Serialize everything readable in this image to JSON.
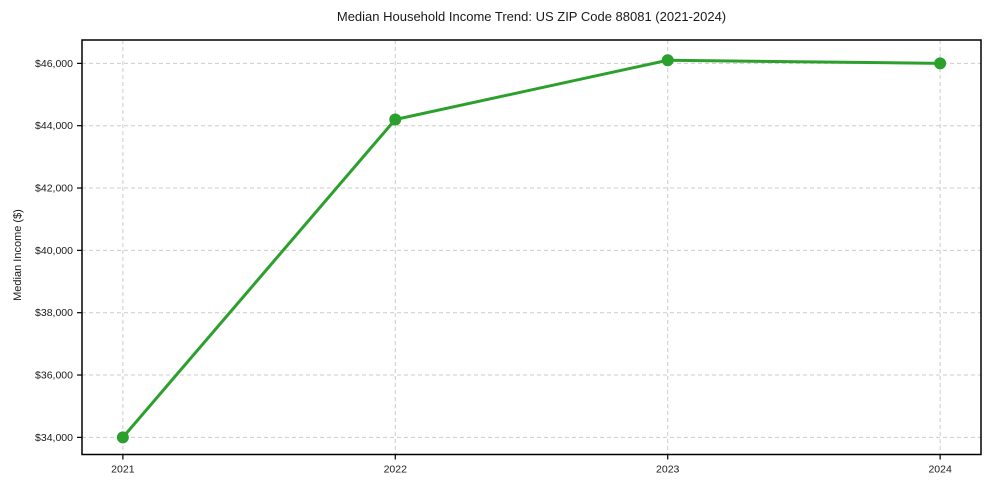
{
  "chart_data": {
    "type": "line",
    "title": "Median Household Income Trend: US ZIP Code 88081 (2021-2024)",
    "xlabel": "",
    "ylabel": "Median Income ($)",
    "x": [
      2021,
      2022,
      2023,
      2024
    ],
    "xtick_labels": [
      "2021",
      "2022",
      "2023",
      "2024"
    ],
    "series": [
      {
        "name": "Median Household Income",
        "values": [
          34000,
          44200,
          46100,
          46000
        ]
      }
    ],
    "yticks": [
      34000,
      36000,
      38000,
      40000,
      42000,
      44000,
      46000
    ],
    "ytick_labels": [
      "$34,000",
      "$36,000",
      "$38,000",
      "$40,000",
      "$42,000",
      "$44,000",
      "$46,000"
    ],
    "xlim": [
      2020.85,
      2024.15
    ],
    "ylim": [
      33450,
      46750
    ],
    "grid": true,
    "grid_style": "dashed",
    "legend": "none",
    "colors": {
      "line": "#2ca02c",
      "marker": "#2ca02c",
      "grid": "#cccccc",
      "spine": "#000000",
      "text": "#1a1a1a",
      "background": "#ffffff"
    }
  }
}
